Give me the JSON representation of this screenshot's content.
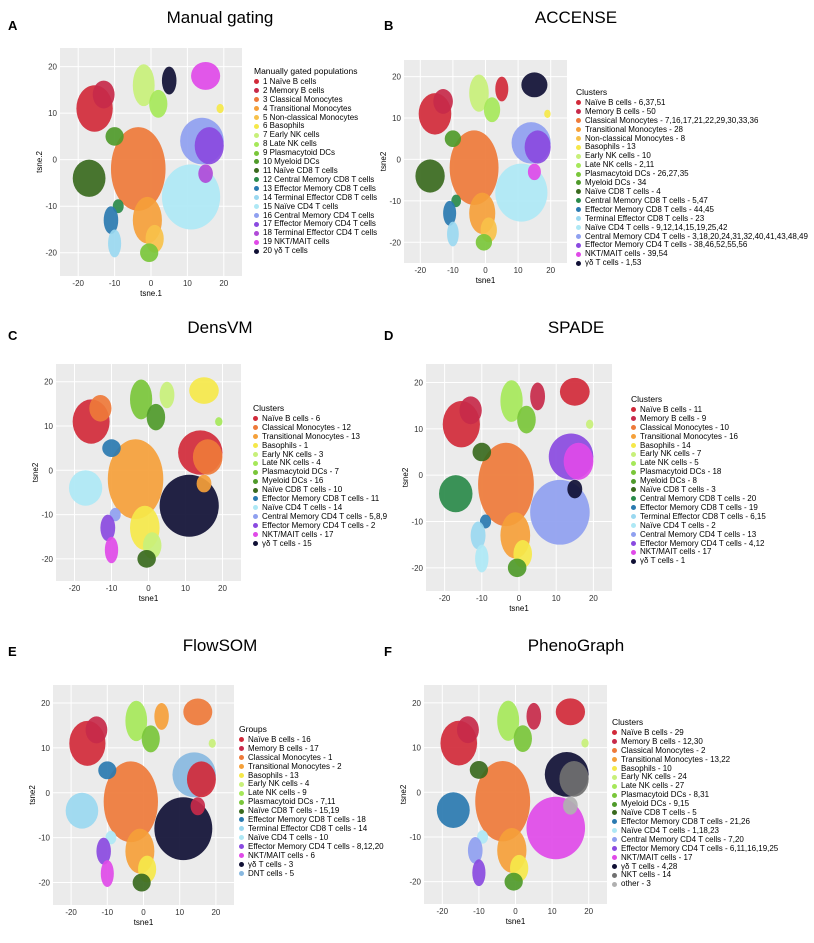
{
  "chart_data": [
    {
      "type": "scatter",
      "letter": "A",
      "title": "Manual gating",
      "xlabel": "tsne.1",
      "ylabel": "tsne.2",
      "xticks": [
        -20,
        -10,
        0,
        10,
        20
      ],
      "yticks": [
        20,
        10,
        0,
        -10,
        -20
      ],
      "legend_title": "Manually gated populations",
      "legend": [
        {
          "label": "1 Naïve B cells",
          "color": "#d12a3a"
        },
        {
          "label": "2 Memory B cells",
          "color": "#c72a4a"
        },
        {
          "label": "3 Classical Monocytes",
          "color": "#ee7a3a"
        },
        {
          "label": "4 Transitional Monocytes",
          "color": "#f5a03a"
        },
        {
          "label": "5 Non-classical Monocytes",
          "color": "#f7c14a"
        },
        {
          "label": "6 Basophils",
          "color": "#f5e84a"
        },
        {
          "label": "7 Early NK cells",
          "color": "#c8f07a"
        },
        {
          "label": "8 Late NK cells",
          "color": "#a6e85a"
        },
        {
          "label": "9 Plasmacytoid DCs",
          "color": "#7ac63a"
        },
        {
          "label": "10 Myeloid DCs",
          "color": "#4f9a2a"
        },
        {
          "label": "11 Naïve CD8 T cells",
          "color": "#3a6a1e"
        },
        {
          "label": "12 Central Memory CD8 T cells",
          "color": "#2a8a4a"
        },
        {
          "label": "13 Effector Memory CD8 T cells",
          "color": "#2a7ab0"
        },
        {
          "label": "14 Terminal Effector CD8 T cells",
          "color": "#9ad8f0"
        },
        {
          "label": "15 Naïve CD4 T cells",
          "color": "#aee8f5"
        },
        {
          "label": "16 Central Memory CD4 T cells",
          "color": "#8fa0f0"
        },
        {
          "label": "17 Effector Memory CD4 T cells",
          "color": "#8a4ae0"
        },
        {
          "label": "18 Terminal Effector CD4 T cells",
          "color": "#b04ad8"
        },
        {
          "label": "19 NKT/MAIT cells",
          "color": "#e04ae8"
        },
        {
          "label": "20 γδ T cells",
          "color": "#101035"
        }
      ]
    },
    {
      "type": "scatter",
      "letter": "B",
      "title": "ACCENSE",
      "xlabel": "tsne1",
      "ylabel": "tsne2",
      "xticks": [
        -20,
        -10,
        0,
        10,
        20
      ],
      "yticks": [
        20,
        10,
        0,
        -10,
        -20
      ],
      "legend_title": "Clusters",
      "legend": [
        {
          "label": "Naïve B cells - 6,37,51",
          "color": "#d12a3a"
        },
        {
          "label": "Memory B cells - 50",
          "color": "#c72a4a"
        },
        {
          "label": "Classical Monocytes - 7,16,17,21,22,29,30,33,36",
          "color": "#ee7a3a"
        },
        {
          "label": "Transitional Monocytes - 28",
          "color": "#f5a03a"
        },
        {
          "label": "Non-classical Monocytes - 8",
          "color": "#f7c14a"
        },
        {
          "label": "Basophils - 13",
          "color": "#f5e84a"
        },
        {
          "label": "Early NK cells - 10",
          "color": "#c8f07a"
        },
        {
          "label": "Late NK cells - 2,11",
          "color": "#a6e85a"
        },
        {
          "label": "Plasmacytoid DCs - 26,27,35",
          "color": "#7ac63a"
        },
        {
          "label": "Myeloid DCs - 34",
          "color": "#4f9a2a"
        },
        {
          "label": "Naïve CD8 T cells - 4",
          "color": "#3a6a1e"
        },
        {
          "label": "Central Memory CD8 T cells - 5,47",
          "color": "#2a8a4a"
        },
        {
          "label": "Effector Memory CD8 T cells - 44,45",
          "color": "#2a7ab0"
        },
        {
          "label": "Terminal Effector CD8 T cells - 23",
          "color": "#9ad8f0"
        },
        {
          "label": "Naïve CD4 T cells - 9,12,14,15,19,25,42",
          "color": "#aee8f5"
        },
        {
          "label": "Central Memory CD4 T cells - 3,18,20,24,31,32,40,41,43,48,49",
          "color": "#8fa0f0"
        },
        {
          "label": "Effector Memory CD4 T cells - 38,46,52,55,56",
          "color": "#8a4ae0"
        },
        {
          "label": "NKT/MAIT cells - 39,54",
          "color": "#e04ae8"
        },
        {
          "label": "γδ T cells - 1,53",
          "color": "#101035"
        }
      ]
    },
    {
      "type": "scatter",
      "letter": "C",
      "title": "DensVM",
      "xlabel": "tsne1",
      "ylabel": "tsne2",
      "xticks": [
        -20,
        -10,
        0,
        10,
        20
      ],
      "yticks": [
        20,
        10,
        0,
        -10,
        -20
      ],
      "legend_title": "Clusters",
      "legend": [
        {
          "label": "Naïve B cells - 6",
          "color": "#d12a3a"
        },
        {
          "label": "Classical Monocytes - 12",
          "color": "#ee7a3a"
        },
        {
          "label": "Transitional Monocytes - 13",
          "color": "#f5a03a"
        },
        {
          "label": "Basophils - 1",
          "color": "#f5e84a"
        },
        {
          "label": "Early NK cells - 3",
          "color": "#c8f07a"
        },
        {
          "label": "Late NK cells - 4",
          "color": "#a6e85a"
        },
        {
          "label": "Plasmacytoid DCs - 7",
          "color": "#7ac63a"
        },
        {
          "label": "Myeloid DCs - 16",
          "color": "#4f9a2a"
        },
        {
          "label": "Naïve CD8 T cells - 10",
          "color": "#3a6a1e"
        },
        {
          "label": "Effector Memory CD8 T cells - 11",
          "color": "#2a7ab0"
        },
        {
          "label": "Naïve CD4 T cells - 14",
          "color": "#aee8f5"
        },
        {
          "label": "Central Memory CD4 T cells - 5,8,9",
          "color": "#8fa0f0"
        },
        {
          "label": "Effector Memory CD4 T cells - 2",
          "color": "#8a4ae0"
        },
        {
          "label": "NKT/MAIT cells - 17",
          "color": "#e04ae8"
        },
        {
          "label": "γδ T cells - 15",
          "color": "#101035"
        }
      ]
    },
    {
      "type": "scatter",
      "letter": "D",
      "title": "SPADE",
      "xlabel": "tsne1",
      "ylabel": "tsne2",
      "xticks": [
        -20,
        -10,
        0,
        10,
        20
      ],
      "yticks": [
        20,
        10,
        0,
        -10,
        -20
      ],
      "legend_title": "Clusters",
      "legend": [
        {
          "label": "Naïve B cells - 11",
          "color": "#d12a3a"
        },
        {
          "label": "Memory B cells - 9",
          "color": "#c72a4a"
        },
        {
          "label": "Classical Monocytes - 10",
          "color": "#ee7a3a"
        },
        {
          "label": "Transitional Monocytes - 16",
          "color": "#f5a03a"
        },
        {
          "label": "Basophils - 14",
          "color": "#f5e84a"
        },
        {
          "label": "Early NK cells - 7",
          "color": "#c8f07a"
        },
        {
          "label": "Late NK cells - 5",
          "color": "#a6e85a"
        },
        {
          "label": "Plasmacytoid DCs - 18",
          "color": "#7ac63a"
        },
        {
          "label": "Myeloid DCs - 8",
          "color": "#4f9a2a"
        },
        {
          "label": "Naïve CD8 T cells - 3",
          "color": "#3a6a1e"
        },
        {
          "label": "Central Memory CD8 T cells - 20",
          "color": "#2a8a4a"
        },
        {
          "label": "Effector Memory CD8 T cells - 19",
          "color": "#2a7ab0"
        },
        {
          "label": "Terminal Effector CD8 T cells - 6,15",
          "color": "#9ad8f0"
        },
        {
          "label": "Naïve CD4 T cells - 2",
          "color": "#aee8f5"
        },
        {
          "label": "Central Memory CD4 T cells - 13",
          "color": "#8fa0f0"
        },
        {
          "label": "Effector Memory CD4 T cells - 4,12",
          "color": "#8a4ae0"
        },
        {
          "label": "NKT/MAIT cells - 17",
          "color": "#e04ae8"
        },
        {
          "label": "γδ T cells - 1",
          "color": "#101035"
        }
      ]
    },
    {
      "type": "scatter",
      "letter": "E",
      "title": "FlowSOM",
      "xlabel": "tsne1",
      "ylabel": "tsne2",
      "xticks": [
        -20,
        -10,
        0,
        10,
        20
      ],
      "yticks": [
        20,
        10,
        0,
        -10,
        -20
      ],
      "legend_title": "Groups",
      "legend": [
        {
          "label": "Naïve B cells - 16",
          "color": "#d12a3a"
        },
        {
          "label": "Memory B cells - 17",
          "color": "#c72a4a"
        },
        {
          "label": "Classical Monocytes - 1",
          "color": "#ee7a3a"
        },
        {
          "label": "Transitional Monocytes - 2",
          "color": "#f5a03a"
        },
        {
          "label": "Basophils - 13",
          "color": "#f5e84a"
        },
        {
          "label": "Early NK cells - 4",
          "color": "#c8f07a"
        },
        {
          "label": "Late NK cells - 9",
          "color": "#a6e85a"
        },
        {
          "label": "Plasmacytoid DCs - 7,11",
          "color": "#7ac63a"
        },
        {
          "label": "Naïve CD8 T cells - 15,19",
          "color": "#3a6a1e"
        },
        {
          "label": "Effector Memory CD8 T cells - 18",
          "color": "#2a7ab0"
        },
        {
          "label": "Terminal Effector CD8 T cells - 14",
          "color": "#9ad8f0"
        },
        {
          "label": "Naïve CD4 T cells - 10",
          "color": "#aee8f5"
        },
        {
          "label": "Effector Memory CD4 T cells - 8,12,20",
          "color": "#8a4ae0"
        },
        {
          "label": "NKT/MAIT cells - 6",
          "color": "#e04ae8"
        },
        {
          "label": "γδ T cells - 3",
          "color": "#101035"
        },
        {
          "label": "DNT cells - 5",
          "color": "#88b8e0"
        }
      ]
    },
    {
      "type": "scatter",
      "letter": "F",
      "title": "PhenoGraph",
      "xlabel": "tsne1",
      "ylabel": "tsne2",
      "xticks": [
        -20,
        -10,
        0,
        10,
        20
      ],
      "yticks": [
        20,
        10,
        0,
        -10,
        -20
      ],
      "legend_title": "Clusters",
      "legend": [
        {
          "label": "Naïve B cells - 29",
          "color": "#d12a3a"
        },
        {
          "label": "Memory B cells - 12,30",
          "color": "#c72a4a"
        },
        {
          "label": "Classical Monocytes - 2",
          "color": "#ee7a3a"
        },
        {
          "label": "Transitional Monocytes - 13,22",
          "color": "#f5a03a"
        },
        {
          "label": "Basophils - 10",
          "color": "#f5e84a"
        },
        {
          "label": "Early NK cells - 24",
          "color": "#c8f07a"
        },
        {
          "label": "Late NK cells - 27",
          "color": "#a6e85a"
        },
        {
          "label": "Plasmacytoid DCs - 8,31",
          "color": "#7ac63a"
        },
        {
          "label": "Myeloid DCs - 9,15",
          "color": "#4f9a2a"
        },
        {
          "label": "Naïve CD8 T cells - 5",
          "color": "#3a6a1e"
        },
        {
          "label": "Effector Memory CD8 T cells - 21,26",
          "color": "#2a7ab0"
        },
        {
          "label": "Naïve CD4 T cells - 1,18,23",
          "color": "#aee8f5"
        },
        {
          "label": "Central Memory CD4 T cells - 7,20",
          "color": "#8fa0f0"
        },
        {
          "label": "Effector Memory CD4 T cells - 6,11,16,19,25",
          "color": "#8a4ae0"
        },
        {
          "label": "NKT/MAIT cells - 17",
          "color": "#e04ae8"
        },
        {
          "label": "γδ T cells - 4,28",
          "color": "#101035"
        },
        {
          "label": "NKT cells - 14",
          "color": "#707070"
        },
        {
          "label": "other - 3",
          "color": "#b0b0b0"
        }
      ]
    }
  ]
}
